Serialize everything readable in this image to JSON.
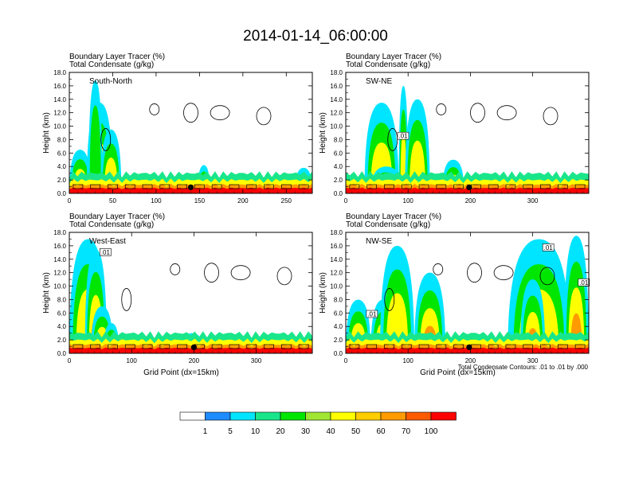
{
  "figure": {
    "title": "2014-01-14_06:00:00",
    "footnote": "Total Condensate Contours: .01 to .01 by .000"
  },
  "colorbar": {
    "colors": [
      "#ffffff",
      "#1e8cff",
      "#00e5ff",
      "#19e68a",
      "#00e600",
      "#a0e632",
      "#ffff00",
      "#ffcd00",
      "#ff9b00",
      "#ff5a00",
      "#ff0000"
    ],
    "labels": [
      "1",
      "5",
      "10",
      "20",
      "30",
      "40",
      "50",
      "60",
      "70",
      "100"
    ],
    "units": "%"
  },
  "chart_data": [
    {
      "type": "heatmap",
      "panel": "top-left",
      "label": "South-North",
      "title_line1": "Boundary Layer Tracer    (%)",
      "title_line2": "Total Condensate   (g/kg)",
      "ylabel": "Height (km)",
      "xlabel": "",
      "xlim": [
        0,
        280
      ],
      "ylim": [
        0,
        18
      ],
      "xticks": [
        0,
        50,
        100,
        150,
        200,
        250
      ],
      "yticks": [
        "0.0",
        "2.0",
        "4.0",
        "6.0",
        "8.0",
        "10.0",
        "12.0",
        "14.0",
        "16.0",
        "18.0"
      ],
      "marker_x": 140,
      "contour_labels": [],
      "plumes": [
        {
          "x0": 0,
          "x1": 25,
          "top": 6.5,
          "level": 4
        },
        {
          "x0": 20,
          "x1": 50,
          "top": 13.5,
          "level": 5
        },
        {
          "x0": 22,
          "x1": 38,
          "top": 16.8,
          "level": 2
        },
        {
          "x0": 36,
          "x1": 60,
          "top": 9.5,
          "level": 3
        },
        {
          "x0": 148,
          "x1": 162,
          "top": 4.2,
          "level": 5
        },
        {
          "x0": 260,
          "x1": 280,
          "top": 3.8,
          "level": 4
        }
      ]
    },
    {
      "type": "heatmap",
      "panel": "top-right",
      "label": "SW-NE",
      "title_line1": "Boundary Layer Tracer    (%)",
      "title_line2": "Total Condensate   (g/kg)",
      "ylabel": "Height (km)",
      "xlabel": "",
      "xlim": [
        0,
        390
      ],
      "ylim": [
        0,
        18
      ],
      "xticks": [
        0,
        100,
        200,
        300
      ],
      "yticks": [
        "0.0",
        "2.0",
        "4.0",
        "6.0",
        "8.0",
        "10.0",
        "12.0",
        "14.0",
        "16.0",
        "18.0"
      ],
      "marker_x": 198,
      "contour_labels": [
        {
          "x": 92,
          "y": 8.5,
          "text": ".01"
        }
      ],
      "plumes": [
        {
          "x0": 30,
          "x1": 85,
          "top": 13.5,
          "level": 3
        },
        {
          "x0": 85,
          "x1": 100,
          "top": 16.0,
          "level": 4
        },
        {
          "x0": 95,
          "x1": 135,
          "top": 14.0,
          "level": 3
        },
        {
          "x0": 155,
          "x1": 190,
          "top": 5.0,
          "level": 6
        },
        {
          "x0": 40,
          "x1": 90,
          "top": 4.0,
          "level": 5
        }
      ]
    },
    {
      "type": "heatmap",
      "panel": "bottom-left",
      "label": "West-East",
      "title_line1": "Boundary Layer Tracer    (%)",
      "title_line2": "Total Condensate   (g/kg)",
      "ylabel": "Height (km)",
      "xlabel": "Grid Point (dx=15km)",
      "xlim": [
        0,
        390
      ],
      "ylim": [
        0,
        18
      ],
      "xticks": [
        0,
        100,
        200,
        300
      ],
      "yticks": [
        "0.0",
        "2.0",
        "4.0",
        "6.0",
        "8.0",
        "10.0",
        "12.0",
        "14.0",
        "16.0",
        "18.0"
      ],
      "marker_x": 200,
      "contour_labels": [
        {
          "x": 58,
          "y": 15.0,
          "text": ".01"
        }
      ],
      "plumes": [
        {
          "x0": 0,
          "x1": 60,
          "top": 17.0,
          "level": 3
        },
        {
          "x0": 25,
          "x1": 60,
          "top": 15.5,
          "level": 7
        },
        {
          "x0": 35,
          "x1": 70,
          "top": 7.0,
          "level": 5
        },
        {
          "x0": 55,
          "x1": 80,
          "top": 4.5,
          "level": 4
        },
        {
          "x0": 180,
          "x1": 215,
          "top": 3.0,
          "level": 3
        }
      ]
    },
    {
      "type": "heatmap",
      "panel": "bottom-right",
      "label": "NW-SE",
      "title_line1": "Boundary Layer Tracer    (%)",
      "title_line2": "Total Condensate   (g/kg)",
      "ylabel": "Height (km)",
      "xlabel": "Grid Point (dx=15km)",
      "xlim": [
        0,
        390
      ],
      "ylim": [
        0,
        18
      ],
      "xticks": [
        0,
        100,
        200,
        300
      ],
      "yticks": [
        "0.0",
        "2.0",
        "4.0",
        "6.0",
        "8.0",
        "10.0",
        "12.0",
        "14.0",
        "16.0",
        "18.0"
      ],
      "marker_x": 198,
      "contour_labels": [
        {
          "x": 42,
          "y": 5.8,
          "text": ".01"
        },
        {
          "x": 325,
          "y": 15.7,
          "text": ".01"
        },
        {
          "x": 382,
          "y": 10.5,
          "text": ".01"
        }
      ],
      "plumes": [
        {
          "x0": 0,
          "x1": 40,
          "top": 8.0,
          "level": 7
        },
        {
          "x0": 40,
          "x1": 80,
          "top": 8.0,
          "level": 7
        },
        {
          "x0": 55,
          "x1": 110,
          "top": 16.0,
          "level": 3
        },
        {
          "x0": 110,
          "x1": 160,
          "top": 12.0,
          "level": 5
        },
        {
          "x0": 260,
          "x1": 360,
          "top": 17.0,
          "level": 4
        },
        {
          "x0": 280,
          "x1": 320,
          "top": 11.0,
          "level": 8
        },
        {
          "x0": 350,
          "x1": 390,
          "top": 17.5,
          "level": 6
        }
      ]
    }
  ]
}
